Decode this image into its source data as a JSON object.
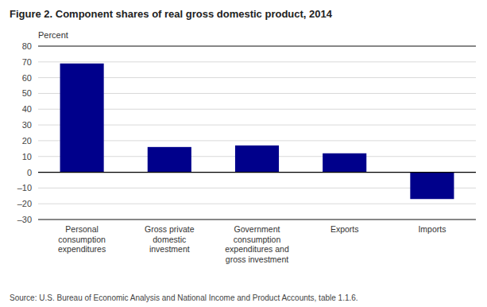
{
  "chart_data": {
    "type": "bar",
    "title": "Figure  2. Component shares of real gross domestic product, 2014",
    "ylabel": "Percent",
    "source": "Source: U.S. Bureau of Economic Analysis and National Income and Product Accounts, table 1.1.6.",
    "categories": [
      "Personal\nconsumption\nexpenditures",
      "Gross private\ndomestic\ninvestment",
      "Government\nconsumption\nexpenditures and\ngross investment",
      "Exports",
      "Imports"
    ],
    "values": [
      69.0,
      16.0,
      17.0,
      12.0,
      -17.0
    ],
    "color": "#00008B",
    "ylim": [
      -30,
      80
    ],
    "yticks": [
      {
        "value": -30,
        "label": "–30"
      },
      {
        "value": -20,
        "label": "–20"
      },
      {
        "value": -10,
        "label": "–10"
      },
      0,
      10,
      20,
      30,
      40,
      50,
      60,
      70,
      80
    ],
    "grid": true
  }
}
